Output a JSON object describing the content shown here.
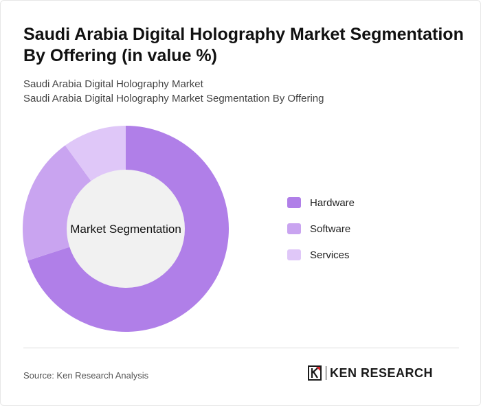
{
  "title": "Saudi Arabia Digital Holography Market Segmentation By Offering (in value %)",
  "subtitle_line1": "Saudi Arabia Digital Holography Market",
  "subtitle_line2": "Saudi Arabia Digital Holography Market Segmentation By Offering",
  "chart_data": {
    "type": "pie",
    "style": "donut",
    "center_label": "Market Segmentation",
    "categories": [
      "Hardware",
      "Software",
      "Services"
    ],
    "values": [
      70,
      20,
      10
    ],
    "colors": [
      "#b07fe8",
      "#c9a4f0",
      "#dfc7f8"
    ],
    "legend_placement": "right"
  },
  "legend": [
    {
      "label": "Hardware",
      "color": "#b07fe8"
    },
    {
      "label": "Software",
      "color": "#c9a4f0"
    },
    {
      "label": "Services",
      "color": "#dfc7f8"
    }
  ],
  "source": "Source: Ken Research Analysis",
  "logo": {
    "text": "KEN RESEARCH",
    "icon": "ken-research-logo-icon"
  }
}
